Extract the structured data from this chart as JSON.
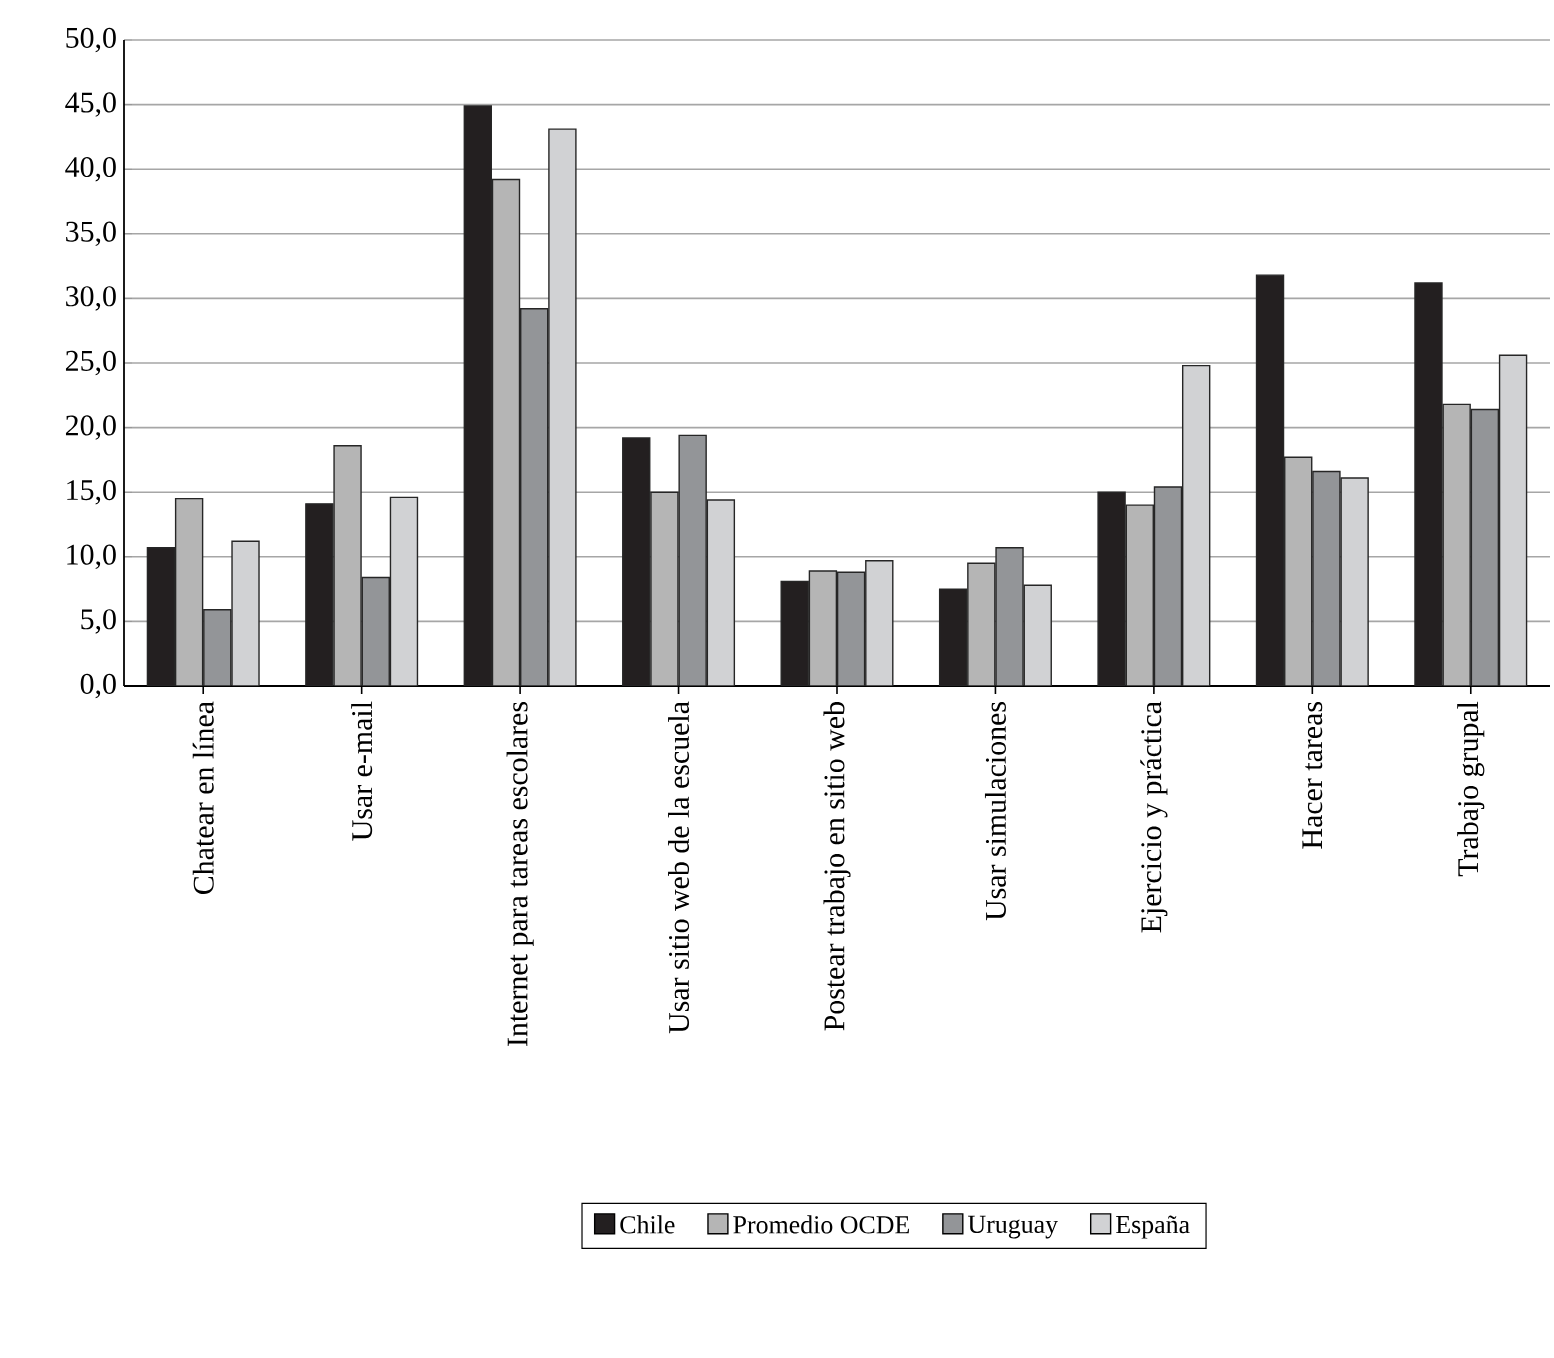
{
  "chart_data": {
    "type": "bar",
    "categories": [
      "Chatear en línea",
      "Usar e-mail",
      "Internet para tareas escolares",
      "Usar sitio web de la escuela",
      "Postear trabajo en sitio web",
      "Usar simulaciones",
      "Ejercicio y práctica",
      "Hacer tareas",
      "Trabajo grupal"
    ],
    "series": [
      {
        "name": "Chile",
        "color": "#231f20",
        "values": [
          10.7,
          14.1,
          44.9,
          19.2,
          8.1,
          7.5,
          15.0,
          31.8,
          31.2
        ]
      },
      {
        "name": "Promedio OCDE",
        "color": "#b5b5b5",
        "values": [
          14.5,
          18.6,
          39.2,
          15.0,
          8.9,
          9.5,
          14.0,
          17.7,
          21.8
        ]
      },
      {
        "name": "Uruguay",
        "color": "#939598",
        "values": [
          5.9,
          8.4,
          29.2,
          19.4,
          8.8,
          10.7,
          15.4,
          16.6,
          21.4
        ]
      },
      {
        "name": "España",
        "color": "#d1d2d4",
        "values": [
          11.2,
          14.6,
          43.1,
          14.4,
          9.7,
          7.8,
          24.8,
          16.1,
          25.6
        ]
      }
    ],
    "ylim": [
      0,
      50
    ],
    "yticks": [
      {
        "value": 0,
        "label": "0,0"
      },
      {
        "value": 5,
        "label": "5,0"
      },
      {
        "value": 10,
        "label": "10,0"
      },
      {
        "value": 15,
        "label": "15,0"
      },
      {
        "value": 20,
        "label": "20,0"
      },
      {
        "value": 25,
        "label": "25,0"
      },
      {
        "value": 30,
        "label": "30,0"
      },
      {
        "value": 35,
        "label": "35,0"
      },
      {
        "value": 40,
        "label": "40,0"
      },
      {
        "value": 45,
        "label": "45,0"
      },
      {
        "value": 50,
        "label": "50,0"
      }
    ],
    "grid": "y",
    "legend": "bottom"
  }
}
